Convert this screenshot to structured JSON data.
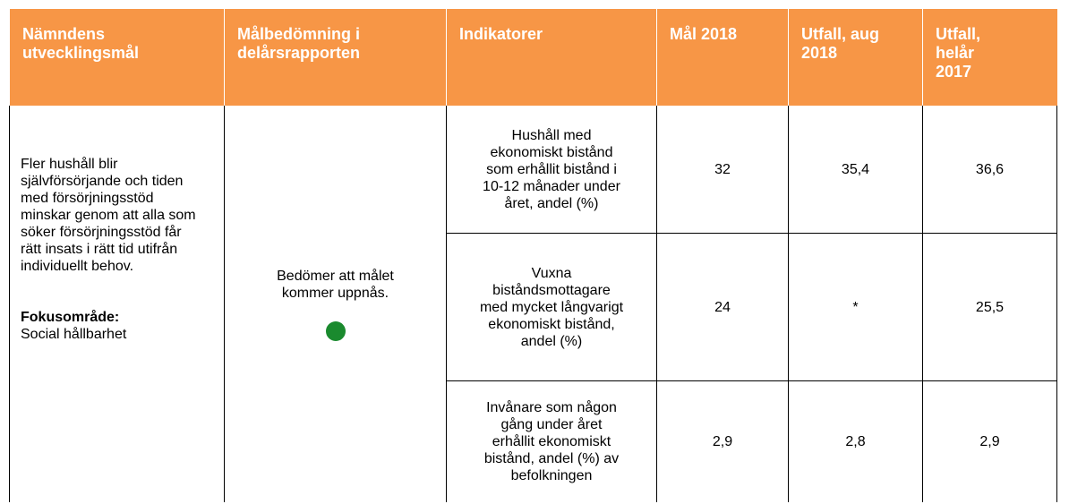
{
  "header": {
    "cells": [
      "Nämndens utvecklingsmål",
      "Målbedömning i delårsrapporten",
      "Indikatorer",
      "Mål 2018",
      "Utfall, aug 2018",
      "Utfall, helår 2017"
    ]
  },
  "goal": {
    "text": "Fler hushåll blir självförsörjande och tiden med försörjningsstöd minskar genom att alla som söker försörjningsstöd får rätt insats i rätt tid utifrån individuellt behov.",
    "focus_label": "Fokusområde:",
    "focus_text": "Social hållbarhet"
  },
  "assessment": {
    "text": "Bedömer att målet kommer uppnås."
  },
  "table": {
    "rows": [
      [
        "Hushåll med ekonomiskt bistånd som erhållit bistånd i 10-12 månader under året, andel (%)",
        "32",
        "35,4",
        "36,6"
      ],
      [
        "Vuxna biståndsmottagare med mycket långvarigt ekonomiskt bistånd, andel (%)",
        "24",
        "*",
        "25,5"
      ],
      [
        "Invånare som någon gång under året erhållit ekonomiskt bistånd, andel (%) av befolkningen",
        "2,9",
        "2,8",
        "2,9"
      ]
    ]
  }
}
